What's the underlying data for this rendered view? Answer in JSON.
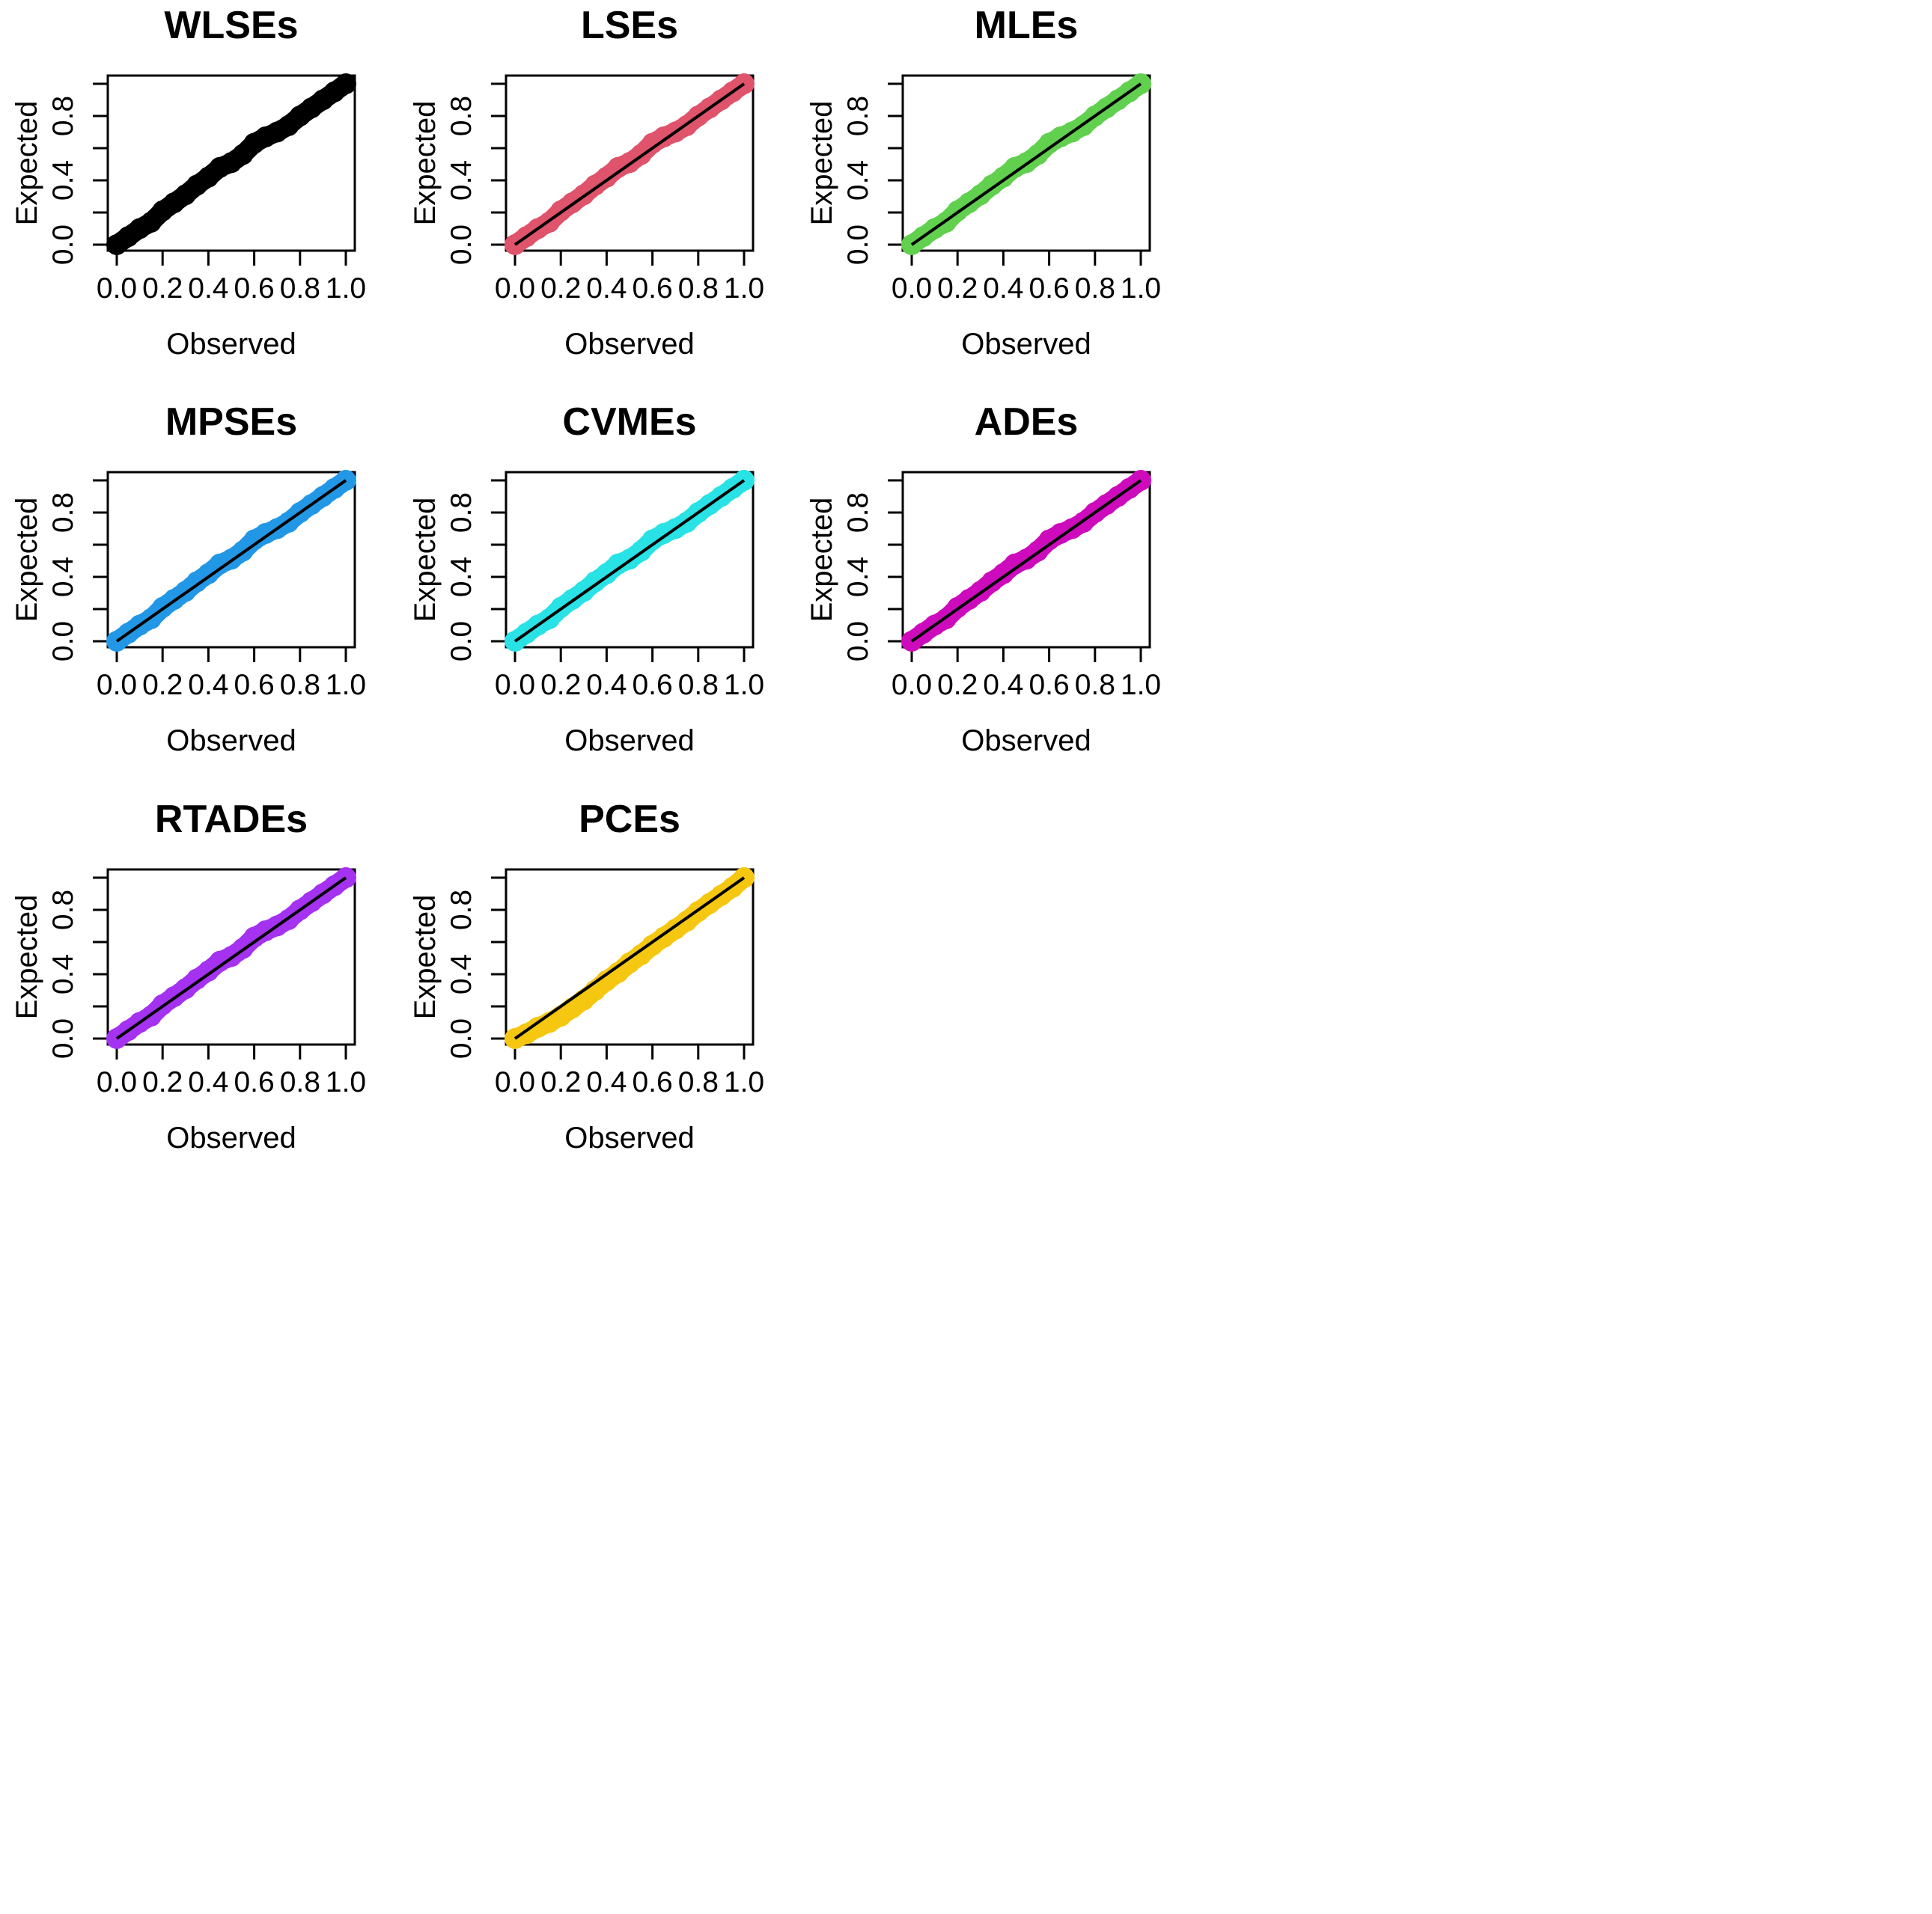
{
  "figure": {
    "layout": "3 rows x 3 columns of P-P plots (last cell empty)"
  },
  "chart_data": [
    {
      "type": "scatter",
      "title": "WLSEs",
      "xlabel": "Observed",
      "ylabel": "Expected",
      "color": "#000000",
      "reference_line": false,
      "xlim": [
        0,
        1
      ],
      "ylim": [
        0,
        1
      ],
      "xticks": [
        "0.0",
        "0.2",
        "0.4",
        "0.6",
        "0.8",
        "1.0"
      ],
      "yticks": [
        "0.0",
        "0.4",
        "0.8"
      ],
      "x": [
        0.0,
        0.05,
        0.1,
        0.15,
        0.2,
        0.25,
        0.3,
        0.35,
        0.4,
        0.45,
        0.5,
        0.55,
        0.6,
        0.65,
        0.7,
        0.75,
        0.8,
        0.85,
        0.9,
        0.95,
        1.0
      ],
      "y": [
        0.0,
        0.05,
        0.1,
        0.14,
        0.21,
        0.26,
        0.31,
        0.37,
        0.42,
        0.48,
        0.51,
        0.56,
        0.63,
        0.67,
        0.7,
        0.74,
        0.8,
        0.85,
        0.9,
        0.95,
        1.0
      ]
    },
    {
      "type": "scatter",
      "title": "LSEs",
      "xlabel": "Observed",
      "ylabel": "Expected",
      "color": "#DF536B",
      "reference_line": true,
      "xlim": [
        0,
        1
      ],
      "ylim": [
        0,
        1
      ],
      "xticks": [
        "0.0",
        "0.2",
        "0.4",
        "0.6",
        "0.8",
        "1.0"
      ],
      "yticks": [
        "0.0",
        "0.4",
        "0.8"
      ],
      "x": [
        0.0,
        0.05,
        0.1,
        0.15,
        0.2,
        0.25,
        0.3,
        0.35,
        0.4,
        0.45,
        0.5,
        0.55,
        0.6,
        0.65,
        0.7,
        0.75,
        0.8,
        0.85,
        0.9,
        0.95,
        1.0
      ],
      "y": [
        0.0,
        0.05,
        0.1,
        0.14,
        0.21,
        0.26,
        0.31,
        0.37,
        0.42,
        0.48,
        0.51,
        0.56,
        0.63,
        0.67,
        0.7,
        0.74,
        0.8,
        0.85,
        0.9,
        0.95,
        1.0
      ]
    },
    {
      "type": "scatter",
      "title": "MLEs",
      "xlabel": "Observed",
      "ylabel": "Expected",
      "color": "#61D04F",
      "reference_line": true,
      "xlim": [
        0,
        1
      ],
      "ylim": [
        0,
        1
      ],
      "xticks": [
        "0.0",
        "0.2",
        "0.4",
        "0.6",
        "0.8",
        "1.0"
      ],
      "yticks": [
        "0.0",
        "0.4",
        "0.8"
      ],
      "x": [
        0.0,
        0.05,
        0.1,
        0.15,
        0.2,
        0.25,
        0.3,
        0.35,
        0.4,
        0.45,
        0.5,
        0.55,
        0.6,
        0.65,
        0.7,
        0.75,
        0.8,
        0.85,
        0.9,
        0.95,
        1.0
      ],
      "y": [
        0.0,
        0.05,
        0.1,
        0.14,
        0.21,
        0.26,
        0.31,
        0.37,
        0.42,
        0.48,
        0.51,
        0.56,
        0.63,
        0.67,
        0.7,
        0.74,
        0.8,
        0.85,
        0.9,
        0.95,
        1.0
      ]
    },
    {
      "type": "scatter",
      "title": "MPSEs",
      "xlabel": "Observed",
      "ylabel": "Expected",
      "color": "#2297E6",
      "reference_line": true,
      "xlim": [
        0,
        1
      ],
      "ylim": [
        0,
        1
      ],
      "xticks": [
        "0.0",
        "0.2",
        "0.4",
        "0.6",
        "0.8",
        "1.0"
      ],
      "yticks": [
        "0.0",
        "0.4",
        "0.8"
      ],
      "x": [
        0.0,
        0.05,
        0.1,
        0.15,
        0.2,
        0.25,
        0.3,
        0.35,
        0.4,
        0.45,
        0.5,
        0.55,
        0.6,
        0.65,
        0.7,
        0.75,
        0.8,
        0.85,
        0.9,
        0.95,
        1.0
      ],
      "y": [
        0.0,
        0.05,
        0.1,
        0.14,
        0.21,
        0.26,
        0.31,
        0.37,
        0.42,
        0.48,
        0.51,
        0.56,
        0.63,
        0.67,
        0.7,
        0.74,
        0.8,
        0.85,
        0.9,
        0.95,
        1.0
      ]
    },
    {
      "type": "scatter",
      "title": "CVMEs",
      "xlabel": "Observed",
      "ylabel": "Expected",
      "color": "#28E2E5",
      "reference_line": true,
      "xlim": [
        0,
        1
      ],
      "ylim": [
        0,
        1
      ],
      "xticks": [
        "0.0",
        "0.2",
        "0.4",
        "0.6",
        "0.8",
        "1.0"
      ],
      "yticks": [
        "0.0",
        "0.4",
        "0.8"
      ],
      "x": [
        0.0,
        0.05,
        0.1,
        0.15,
        0.2,
        0.25,
        0.3,
        0.35,
        0.4,
        0.45,
        0.5,
        0.55,
        0.6,
        0.65,
        0.7,
        0.75,
        0.8,
        0.85,
        0.9,
        0.95,
        1.0
      ],
      "y": [
        0.0,
        0.05,
        0.1,
        0.14,
        0.21,
        0.26,
        0.31,
        0.37,
        0.42,
        0.48,
        0.51,
        0.56,
        0.63,
        0.67,
        0.7,
        0.74,
        0.8,
        0.85,
        0.9,
        0.95,
        1.0
      ]
    },
    {
      "type": "scatter",
      "title": "ADEs",
      "xlabel": "Observed",
      "ylabel": "Expected",
      "color": "#CD0BBC",
      "reference_line": true,
      "xlim": [
        0,
        1
      ],
      "ylim": [
        0,
        1
      ],
      "xticks": [
        "0.0",
        "0.2",
        "0.4",
        "0.6",
        "0.8",
        "1.0"
      ],
      "yticks": [
        "0.0",
        "0.4",
        "0.8"
      ],
      "x": [
        0.0,
        0.05,
        0.1,
        0.15,
        0.2,
        0.25,
        0.3,
        0.35,
        0.4,
        0.45,
        0.5,
        0.55,
        0.6,
        0.65,
        0.7,
        0.75,
        0.8,
        0.85,
        0.9,
        0.95,
        1.0
      ],
      "y": [
        0.0,
        0.05,
        0.1,
        0.14,
        0.21,
        0.26,
        0.31,
        0.37,
        0.42,
        0.48,
        0.51,
        0.56,
        0.63,
        0.67,
        0.7,
        0.74,
        0.8,
        0.85,
        0.9,
        0.95,
        1.0
      ]
    },
    {
      "type": "scatter",
      "title": "RTADEs",
      "xlabel": "Observed",
      "ylabel": "Expected",
      "color": "#A432F0",
      "reference_line": true,
      "xlim": [
        0,
        1
      ],
      "ylim": [
        0,
        1
      ],
      "xticks": [
        "0.0",
        "0.2",
        "0.4",
        "0.6",
        "0.8",
        "1.0"
      ],
      "yticks": [
        "0.0",
        "0.4",
        "0.8"
      ],
      "x": [
        0.0,
        0.05,
        0.1,
        0.15,
        0.2,
        0.25,
        0.3,
        0.35,
        0.4,
        0.45,
        0.5,
        0.55,
        0.6,
        0.65,
        0.7,
        0.75,
        0.8,
        0.85,
        0.9,
        0.95,
        1.0
      ],
      "y": [
        0.0,
        0.05,
        0.1,
        0.14,
        0.21,
        0.26,
        0.31,
        0.37,
        0.42,
        0.48,
        0.51,
        0.56,
        0.63,
        0.67,
        0.7,
        0.74,
        0.8,
        0.85,
        0.9,
        0.95,
        1.0
      ]
    },
    {
      "type": "scatter",
      "title": "PCEs",
      "xlabel": "Observed",
      "ylabel": "Expected",
      "color": "#F5C710",
      "reference_line": true,
      "xlim": [
        0,
        1
      ],
      "ylim": [
        0,
        1
      ],
      "xticks": [
        "0.0",
        "0.2",
        "0.4",
        "0.6",
        "0.8",
        "1.0"
      ],
      "yticks": [
        "0.0",
        "0.4",
        "0.8"
      ],
      "x": [
        0.0,
        0.05,
        0.1,
        0.15,
        0.2,
        0.25,
        0.3,
        0.35,
        0.4,
        0.45,
        0.5,
        0.55,
        0.6,
        0.65,
        0.7,
        0.75,
        0.8,
        0.85,
        0.9,
        0.95,
        1.0
      ],
      "y": [
        0.0,
        0.03,
        0.07,
        0.1,
        0.14,
        0.19,
        0.24,
        0.3,
        0.36,
        0.41,
        0.47,
        0.52,
        0.58,
        0.63,
        0.68,
        0.73,
        0.79,
        0.84,
        0.89,
        0.94,
        1.0
      ]
    }
  ]
}
